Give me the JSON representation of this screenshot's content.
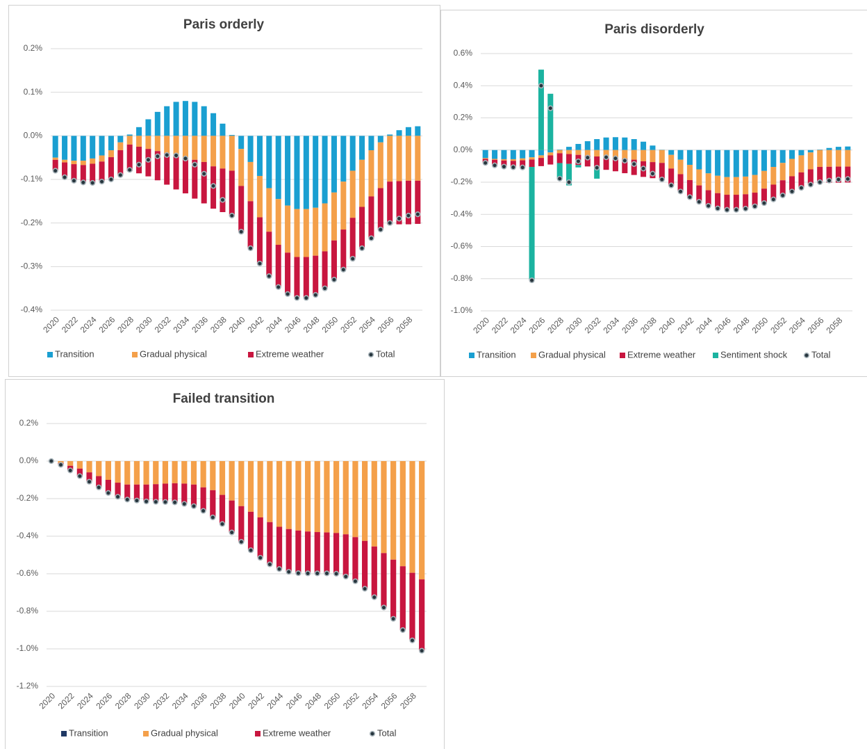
{
  "chart_data": [
    {
      "type": "bar",
      "stacked": true,
      "title": "Paris orderly",
      "categories": [
        "2020",
        null,
        "2022",
        null,
        "2024",
        null,
        "2026",
        null,
        "2028",
        null,
        "2030",
        null,
        "2032",
        null,
        "2034",
        null,
        "2036",
        null,
        "2038",
        null,
        "2040",
        null,
        "2042",
        null,
        "2044",
        null,
        "2046",
        null,
        "2048",
        null,
        "2050",
        null,
        "2052",
        null,
        "2054",
        null,
        "2056",
        null,
        "2058",
        null
      ],
      "series": [
        {
          "name": "Transition",
          "color": "#1a9fd1",
          "values": [
            -0.05,
            -0.055,
            -0.057,
            -0.057,
            -0.052,
            -0.045,
            -0.033,
            -0.015,
            0.003,
            0.02,
            0.038,
            0.055,
            0.068,
            0.078,
            0.08,
            0.078,
            0.068,
            0.052,
            0.028,
            0.002,
            -0.03,
            -0.06,
            -0.092,
            -0.12,
            -0.145,
            -0.16,
            -0.168,
            -0.168,
            -0.165,
            -0.155,
            -0.13,
            -0.105,
            -0.08,
            -0.055,
            -0.033,
            -0.015,
            0.003,
            0.013,
            0.02,
            0.022
          ]
        },
        {
          "name": "Gradual physical",
          "color": "#f4a04a",
          "values": [
            -0.005,
            -0.006,
            -0.008,
            -0.01,
            -0.012,
            -0.014,
            -0.016,
            -0.018,
            -0.02,
            -0.025,
            -0.03,
            -0.035,
            -0.04,
            -0.045,
            -0.05,
            -0.055,
            -0.06,
            -0.07,
            -0.075,
            -0.08,
            -0.085,
            -0.09,
            -0.095,
            -0.1,
            -0.105,
            -0.108,
            -0.11,
            -0.11,
            -0.11,
            -0.11,
            -0.11,
            -0.11,
            -0.108,
            -0.108,
            -0.106,
            -0.105,
            -0.105,
            -0.104,
            -0.103,
            -0.103
          ]
        },
        {
          "name": "Extreme weather",
          "color": "#c8163f",
          "values": [
            -0.025,
            -0.034,
            -0.038,
            -0.04,
            -0.044,
            -0.046,
            -0.051,
            -0.057,
            -0.061,
            -0.061,
            -0.063,
            -0.067,
            -0.072,
            -0.078,
            -0.082,
            -0.089,
            -0.095,
            -0.097,
            -0.1,
            -0.105,
            -0.105,
            -0.108,
            -0.106,
            -0.102,
            -0.097,
            -0.095,
            -0.094,
            -0.094,
            -0.09,
            -0.085,
            -0.09,
            -0.092,
            -0.094,
            -0.095,
            -0.096,
            -0.095,
            -0.098,
            -0.099,
            -0.1,
            -0.099
          ]
        },
        {
          "name": "Total",
          "type": "scatter",
          "color": "#26353d",
          "values": [
            -0.08,
            -0.095,
            -0.103,
            -0.107,
            -0.108,
            -0.105,
            -0.1,
            -0.09,
            -0.078,
            -0.066,
            -0.055,
            -0.047,
            -0.044,
            -0.045,
            -0.052,
            -0.066,
            -0.087,
            -0.115,
            -0.147,
            -0.183,
            -0.22,
            -0.258,
            -0.293,
            -0.322,
            -0.347,
            -0.363,
            -0.372,
            -0.372,
            -0.365,
            -0.35,
            -0.33,
            -0.307,
            -0.282,
            -0.258,
            -0.235,
            -0.215,
            -0.2,
            -0.19,
            -0.183,
            -0.18
          ]
        }
      ],
      "ylim": [
        -0.4,
        0.2
      ],
      "yticks": [
        {
          "value": -0.4,
          "label": "-0.4%"
        },
        {
          "value": -0.3,
          "label": "-0.3%"
        },
        {
          "value": -0.2,
          "label": "-0.2%"
        },
        {
          "value": -0.1,
          "label": "-0.1%"
        },
        {
          "value": 0,
          "label": "0.0%"
        },
        {
          "value": 0.1,
          "label": "0.1%"
        },
        {
          "value": 0.2,
          "label": "0.2%"
        }
      ],
      "grid": true
    },
    {
      "type": "bar",
      "stacked": true,
      "title": "Paris disorderly",
      "categories": [
        "2020",
        null,
        "2022",
        null,
        "2024",
        null,
        "2026",
        null,
        "2028",
        null,
        "2030",
        null,
        "2032",
        null,
        "2034",
        null,
        "2036",
        null,
        "2038",
        null,
        "2040",
        null,
        "2042",
        null,
        "2044",
        null,
        "2046",
        null,
        "2048",
        null,
        "2050",
        null,
        "2052",
        null,
        "2054",
        null,
        "2056",
        null,
        "2058",
        null
      ],
      "series": [
        {
          "name": "Transition",
          "color": "#1a9fd1",
          "values": [
            -0.05,
            -0.055,
            -0.057,
            -0.057,
            -0.052,
            -0.045,
            -0.033,
            -0.015,
            0.003,
            0.02,
            0.038,
            0.055,
            0.068,
            0.078,
            0.08,
            0.078,
            0.068,
            0.052,
            0.028,
            0.002,
            -0.03,
            -0.06,
            -0.092,
            -0.12,
            -0.145,
            -0.16,
            -0.168,
            -0.168,
            -0.165,
            -0.155,
            -0.13,
            -0.105,
            -0.08,
            -0.055,
            -0.033,
            -0.015,
            0.003,
            0.013,
            0.02,
            0.022
          ]
        },
        {
          "name": "Gradual physical",
          "color": "#f4a04a",
          "values": [
            -0.005,
            -0.006,
            -0.008,
            -0.01,
            -0.012,
            -0.014,
            -0.016,
            -0.018,
            -0.02,
            -0.025,
            -0.03,
            -0.035,
            -0.04,
            -0.045,
            -0.05,
            -0.055,
            -0.06,
            -0.07,
            -0.075,
            -0.08,
            -0.085,
            -0.09,
            -0.095,
            -0.1,
            -0.105,
            -0.108,
            -0.11,
            -0.11,
            -0.11,
            -0.11,
            -0.11,
            -0.11,
            -0.108,
            -0.108,
            -0.106,
            -0.105,
            -0.105,
            -0.104,
            -0.103,
            -0.103
          ]
        },
        {
          "name": "Extreme weather",
          "color": "#c8163f",
          "values": [
            -0.025,
            -0.034,
            -0.038,
            -0.04,
            -0.044,
            -0.046,
            -0.051,
            -0.057,
            -0.061,
            -0.061,
            -0.063,
            -0.067,
            -0.072,
            -0.078,
            -0.082,
            -0.089,
            -0.095,
            -0.097,
            -0.1,
            -0.105,
            -0.105,
            -0.108,
            -0.106,
            -0.102,
            -0.097,
            -0.095,
            -0.094,
            -0.094,
            -0.09,
            -0.085,
            -0.09,
            -0.092,
            -0.094,
            -0.095,
            -0.096,
            -0.095,
            -0.098,
            -0.099,
            -0.1,
            -0.099
          ]
        },
        {
          "name": "Sentiment shock",
          "color": "#1bb3a0",
          "values": [
            0,
            0,
            0,
            0,
            0,
            -0.705,
            0.5,
            0.35,
            -0.1,
            -0.134,
            -0.015,
            0,
            -0.066,
            0,
            0,
            0,
            0,
            0,
            0,
            0,
            0,
            0,
            0,
            0,
            0,
            0,
            0,
            0,
            0,
            0,
            0,
            0,
            0,
            0,
            0,
            0,
            0,
            0,
            0,
            0
          ]
        },
        {
          "name": "Total",
          "type": "scatter",
          "color": "#26353d",
          "values": [
            -0.08,
            -0.095,
            -0.103,
            -0.107,
            -0.108,
            -0.81,
            0.4,
            0.26,
            -0.178,
            -0.2,
            -0.07,
            -0.047,
            -0.11,
            -0.045,
            -0.052,
            -0.066,
            -0.087,
            -0.115,
            -0.147,
            -0.183,
            -0.22,
            -0.258,
            -0.293,
            -0.322,
            -0.347,
            -0.363,
            -0.372,
            -0.372,
            -0.365,
            -0.35,
            -0.33,
            -0.307,
            -0.282,
            -0.258,
            -0.235,
            -0.215,
            -0.2,
            -0.19,
            -0.183,
            -0.18
          ]
        }
      ],
      "ylim": [
        -1.0,
        0.6
      ],
      "yticks": [
        {
          "value": -1.0,
          "label": "-1.0%"
        },
        {
          "value": -0.8,
          "label": "-0.8%"
        },
        {
          "value": -0.6,
          "label": "-0.6%"
        },
        {
          "value": -0.4,
          "label": "-0.4%"
        },
        {
          "value": -0.2,
          "label": "-0.2%"
        },
        {
          "value": 0,
          "label": "0.0%"
        },
        {
          "value": 0.2,
          "label": "0.2%"
        },
        {
          "value": 0.4,
          "label": "0.4%"
        },
        {
          "value": 0.6,
          "label": "0.6%"
        }
      ],
      "grid": true
    },
    {
      "type": "bar",
      "stacked": true,
      "title": "Failed transition",
      "categories": [
        "2020",
        null,
        "2022",
        null,
        "2024",
        null,
        "2026",
        null,
        "2028",
        null,
        "2030",
        null,
        "2032",
        null,
        "2034",
        null,
        "2036",
        null,
        "2038",
        null,
        "2040",
        null,
        "2042",
        null,
        "2044",
        null,
        "2046",
        null,
        "2048",
        null,
        "2050",
        null,
        "2052",
        null,
        "2054",
        null,
        "2056",
        null,
        "2058",
        null
      ],
      "series": [
        {
          "name": "Transition",
          "color": "#1f3864",
          "values": [
            0,
            0,
            0,
            0,
            0,
            0,
            0,
            0,
            0,
            0,
            0,
            0,
            0,
            0,
            0,
            0,
            0,
            0,
            0,
            0,
            0,
            0,
            0,
            0,
            0,
            0,
            0,
            0,
            0,
            0,
            0,
            0,
            0,
            0,
            0,
            0,
            0,
            0,
            0,
            0
          ]
        },
        {
          "name": "Gradual physical",
          "color": "#f4a04a",
          "values": [
            0,
            -0.01,
            -0.025,
            -0.04,
            -0.06,
            -0.08,
            -0.1,
            -0.115,
            -0.125,
            -0.125,
            -0.125,
            -0.123,
            -0.12,
            -0.118,
            -0.12,
            -0.125,
            -0.14,
            -0.155,
            -0.18,
            -0.21,
            -0.24,
            -0.27,
            -0.3,
            -0.325,
            -0.35,
            -0.362,
            -0.37,
            -0.375,
            -0.378,
            -0.38,
            -0.383,
            -0.39,
            -0.405,
            -0.425,
            -0.455,
            -0.49,
            -0.525,
            -0.56,
            -0.595,
            -0.63
          ]
        },
        {
          "name": "Extreme weather",
          "color": "#c8163f",
          "values": [
            0,
            -0.01,
            -0.025,
            -0.04,
            -0.05,
            -0.06,
            -0.07,
            -0.075,
            -0.08,
            -0.085,
            -0.09,
            -0.094,
            -0.098,
            -0.102,
            -0.108,
            -0.115,
            -0.125,
            -0.145,
            -0.155,
            -0.17,
            -0.19,
            -0.205,
            -0.215,
            -0.225,
            -0.225,
            -0.228,
            -0.227,
            -0.223,
            -0.22,
            -0.218,
            -0.217,
            -0.225,
            -0.235,
            -0.255,
            -0.27,
            -0.29,
            -0.315,
            -0.34,
            -0.36,
            -0.38
          ]
        },
        {
          "name": "Total",
          "type": "scatter",
          "color": "#26353d",
          "values": [
            0,
            -0.02,
            -0.05,
            -0.08,
            -0.11,
            -0.14,
            -0.17,
            -0.19,
            -0.205,
            -0.21,
            -0.215,
            -0.217,
            -0.218,
            -0.22,
            -0.228,
            -0.24,
            -0.265,
            -0.3,
            -0.335,
            -0.38,
            -0.43,
            -0.475,
            -0.515,
            -0.55,
            -0.575,
            -0.59,
            -0.597,
            -0.598,
            -0.598,
            -0.598,
            -0.6,
            -0.615,
            -0.64,
            -0.68,
            -0.725,
            -0.78,
            -0.84,
            -0.9,
            -0.955,
            -1.01
          ]
        }
      ],
      "ylim": [
        -1.2,
        0.2
      ],
      "yticks": [
        {
          "value": -1.2,
          "label": "-1.2%"
        },
        {
          "value": -1.0,
          "label": "-1.0%"
        },
        {
          "value": -0.8,
          "label": "-0.8%"
        },
        {
          "value": -0.6,
          "label": "-0.6%"
        },
        {
          "value": -0.4,
          "label": "-0.4%"
        },
        {
          "value": -0.2,
          "label": "-0.2%"
        },
        {
          "value": 0,
          "label": "0.0%"
        },
        {
          "value": 0.2,
          "label": "0.2%"
        }
      ],
      "grid": true
    }
  ]
}
